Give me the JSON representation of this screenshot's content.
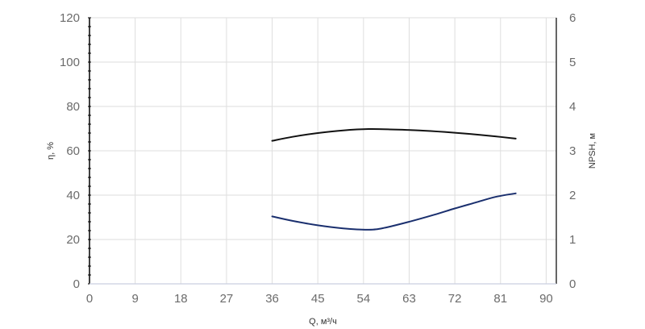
{
  "chart_data": {
    "type": "line",
    "xlabel": "Q, м³/ч",
    "ylabel_left": "η, %",
    "ylabel_right": "NPSH, м",
    "x_ticks": [
      0,
      9,
      18,
      27,
      36,
      45,
      54,
      63,
      72,
      81,
      90
    ],
    "xlim": [
      0,
      92
    ],
    "y_left_ticks": [
      0,
      20,
      40,
      60,
      80,
      100,
      120
    ],
    "ylim_left": [
      0,
      120
    ],
    "y_right_ticks": [
      0,
      1,
      2,
      3,
      4,
      5,
      6
    ],
    "ylim_right": [
      0,
      6
    ],
    "grid": true,
    "series": [
      {
        "axis": "left",
        "color": "#111111",
        "x": [
          36,
          40,
          45,
          50,
          55,
          60,
          65,
          70,
          75,
          80,
          84
        ],
        "y": [
          64.5,
          66.3,
          68.0,
          69.2,
          69.8,
          69.6,
          69.2,
          68.5,
          67.6,
          66.5,
          65.5
        ]
      },
      {
        "axis": "right",
        "color": "#1a2f6e",
        "x": [
          36,
          40,
          45,
          50,
          55,
          58,
          63,
          68,
          72,
          76,
          80,
          84
        ],
        "y": [
          1.52,
          1.42,
          1.32,
          1.25,
          1.22,
          1.26,
          1.4,
          1.56,
          1.7,
          1.83,
          1.96,
          2.04
        ]
      }
    ]
  }
}
